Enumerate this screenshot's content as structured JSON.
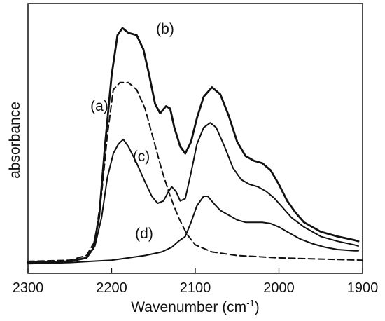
{
  "chart_data": {
    "type": "line",
    "xlabel": "Wavenumber (cm",
    "xlabel_exponent": "-1",
    "xlabel_close": ")",
    "ylabel": "absorbance",
    "xlim": [
      2300,
      1900
    ],
    "ylim": [
      0,
      1
    ],
    "x_reversed": true,
    "grid": false,
    "x_ticks": [
      2300,
      2200,
      2100,
      2000,
      1900
    ],
    "x_tick_labels": [
      "2300",
      "2200",
      "2100",
      "2000",
      "1900"
    ],
    "series": [
      {
        "name": "(a)",
        "style": "dashed",
        "points": [
          [
            2300,
            0.015
          ],
          [
            2250,
            0.02
          ],
          [
            2230,
            0.04
          ],
          [
            2220,
            0.1
          ],
          [
            2212,
            0.3
          ],
          [
            2205,
            0.55
          ],
          [
            2198,
            0.74
          ],
          [
            2190,
            0.77
          ],
          [
            2180,
            0.77
          ],
          [
            2170,
            0.74
          ],
          [
            2160,
            0.66
          ],
          [
            2150,
            0.53
          ],
          [
            2140,
            0.4
          ],
          [
            2130,
            0.29
          ],
          [
            2120,
            0.2
          ],
          [
            2110,
            0.13
          ],
          [
            2100,
            0.085
          ],
          [
            2080,
            0.055
          ],
          [
            2050,
            0.04
          ],
          [
            2000,
            0.03
          ],
          [
            1950,
            0.025
          ],
          [
            1900,
            0.02
          ]
        ]
      },
      {
        "name": "(b)",
        "style": "solid-bold",
        "points": [
          [
            2300,
            0.01
          ],
          [
            2250,
            0.015
          ],
          [
            2230,
            0.03
          ],
          [
            2222,
            0.07
          ],
          [
            2215,
            0.2
          ],
          [
            2208,
            0.5
          ],
          [
            2200,
            0.8
          ],
          [
            2193,
            0.97
          ],
          [
            2187,
            1.0
          ],
          [
            2180,
            0.98
          ],
          [
            2170,
            0.97
          ],
          [
            2162,
            0.91
          ],
          [
            2155,
            0.8
          ],
          [
            2148,
            0.68
          ],
          [
            2142,
            0.64
          ],
          [
            2135,
            0.67
          ],
          [
            2130,
            0.66
          ],
          [
            2125,
            0.58
          ],
          [
            2118,
            0.5
          ],
          [
            2112,
            0.47
          ],
          [
            2105,
            0.52
          ],
          [
            2098,
            0.62
          ],
          [
            2090,
            0.71
          ],
          [
            2080,
            0.75
          ],
          [
            2070,
            0.72
          ],
          [
            2060,
            0.63
          ],
          [
            2050,
            0.52
          ],
          [
            2040,
            0.46
          ],
          [
            2030,
            0.44
          ],
          [
            2020,
            0.43
          ],
          [
            2010,
            0.4
          ],
          [
            2000,
            0.34
          ],
          [
            1990,
            0.27
          ],
          [
            1980,
            0.22
          ],
          [
            1970,
            0.18
          ],
          [
            1950,
            0.14
          ],
          [
            1930,
            0.12
          ],
          [
            1910,
            0.105
          ],
          [
            1905,
            0.1
          ]
        ]
      },
      {
        "name": "(c)",
        "style": "solid",
        "points": [
          [
            2300,
            0.01
          ],
          [
            2250,
            0.015
          ],
          [
            2230,
            0.03
          ],
          [
            2220,
            0.08
          ],
          [
            2212,
            0.2
          ],
          [
            2205,
            0.37
          ],
          [
            2198,
            0.47
          ],
          [
            2192,
            0.51
          ],
          [
            2186,
            0.53
          ],
          [
            2180,
            0.5
          ],
          [
            2170,
            0.43
          ],
          [
            2160,
            0.35
          ],
          [
            2152,
            0.29
          ],
          [
            2145,
            0.26
          ],
          [
            2138,
            0.27
          ],
          [
            2132,
            0.31
          ],
          [
            2128,
            0.33
          ],
          [
            2123,
            0.31
          ],
          [
            2118,
            0.27
          ],
          [
            2112,
            0.28
          ],
          [
            2105,
            0.39
          ],
          [
            2098,
            0.51
          ],
          [
            2090,
            0.58
          ],
          [
            2082,
            0.6
          ],
          [
            2075,
            0.58
          ],
          [
            2065,
            0.5
          ],
          [
            2055,
            0.41
          ],
          [
            2045,
            0.36
          ],
          [
            2035,
            0.34
          ],
          [
            2025,
            0.33
          ],
          [
            2015,
            0.31
          ],
          [
            2005,
            0.28
          ],
          [
            1995,
            0.24
          ],
          [
            1985,
            0.2
          ],
          [
            1970,
            0.16
          ],
          [
            1950,
            0.12
          ],
          [
            1930,
            0.1
          ],
          [
            1910,
            0.085
          ],
          [
            1905,
            0.08
          ]
        ]
      },
      {
        "name": "(d)",
        "style": "solid",
        "points": [
          [
            2300,
            0.005
          ],
          [
            2250,
            0.01
          ],
          [
            2200,
            0.02
          ],
          [
            2160,
            0.04
          ],
          [
            2140,
            0.055
          ],
          [
            2128,
            0.075
          ],
          [
            2120,
            0.1
          ],
          [
            2112,
            0.12
          ],
          [
            2105,
            0.18
          ],
          [
            2098,
            0.25
          ],
          [
            2090,
            0.29
          ],
          [
            2085,
            0.29
          ],
          [
            2078,
            0.26
          ],
          [
            2070,
            0.23
          ],
          [
            2060,
            0.21
          ],
          [
            2050,
            0.19
          ],
          [
            2040,
            0.18
          ],
          [
            2030,
            0.18
          ],
          [
            2020,
            0.18
          ],
          [
            2010,
            0.175
          ],
          [
            2000,
            0.16
          ],
          [
            1990,
            0.14
          ],
          [
            1975,
            0.11
          ],
          [
            1960,
            0.09
          ],
          [
            1945,
            0.075
          ],
          [
            1930,
            0.065
          ],
          [
            1910,
            0.06
          ],
          [
            1905,
            0.06
          ]
        ]
      }
    ]
  }
}
